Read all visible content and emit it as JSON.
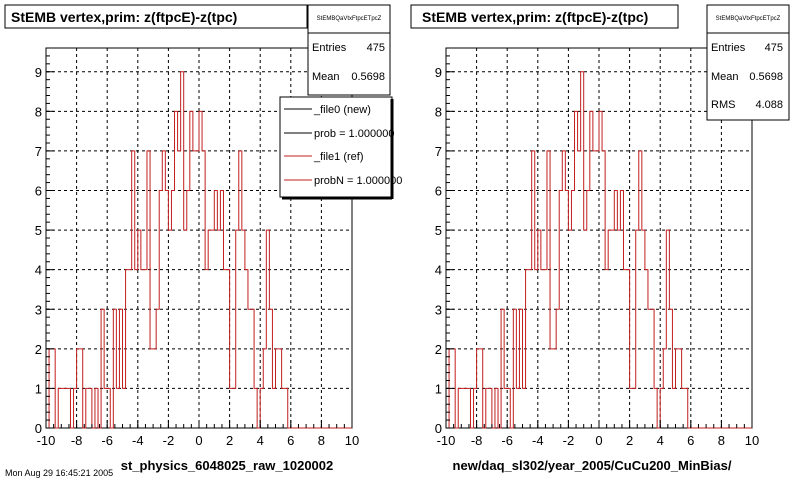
{
  "colors": {
    "hist": "#c21f1f",
    "legend_new": "#000000",
    "legend_ref": "#c21f1f",
    "grid": "#000000",
    "background": "#ffffff"
  },
  "footer_text": "Mon Aug 29 16:45:21 2005",
  "chart_data": [
    {
      "type": "bar",
      "title": "StEMB  vertex,prim: z(ftpcE)-z(tpc)",
      "xlabel": "st_physics_6048025_raw_1020002",
      "ylabel": "",
      "xlim": [
        -10,
        10
      ],
      "ylim": [
        0,
        9.6
      ],
      "grid": true,
      "x_ticks": [
        -10,
        -8,
        -6,
        -4,
        -2,
        0,
        2,
        4,
        6,
        8,
        10
      ],
      "y_ticks": [
        0,
        1,
        2,
        3,
        4,
        5,
        6,
        7,
        8,
        9
      ],
      "bin_width": 0.2,
      "series": [
        {
          "values": [
            0,
            2,
            2,
            0,
            1,
            1,
            1,
            1,
            0,
            1,
            2,
            2,
            0,
            1,
            1,
            0,
            1,
            0,
            3,
            1,
            1,
            0,
            3,
            1,
            3,
            1,
            4,
            4,
            7,
            4,
            5,
            4,
            4,
            7,
            2,
            2,
            3,
            6,
            7,
            6,
            5,
            6,
            8,
            7,
            9,
            5,
            6,
            8,
            7,
            7,
            8,
            7,
            4,
            5,
            5,
            6,
            5,
            6,
            4,
            4,
            1,
            1,
            5,
            7,
            5,
            4,
            3,
            3,
            1,
            0,
            1,
            2,
            5,
            3,
            1,
            2,
            2,
            1,
            1,
            0,
            0,
            0,
            0,
            0,
            0,
            0,
            0,
            0,
            0,
            0,
            0,
            0,
            0,
            0,
            0,
            0,
            0,
            0,
            0,
            0
          ]
        }
      ],
      "stats": {
        "name": "StEMBQaVtxFtpcETpcZ",
        "Entries": "475",
        "Mean": "0.5698"
      },
      "legend": {
        "placement": "top-right",
        "entries": [
          "_file0 (new)",
          "prob = 1.000000",
          "_file1 (ref)",
          "probN = 1.000000"
        ]
      }
    },
    {
      "type": "bar",
      "title": "StEMB  vertex,prim: z(ftpcE)-z(tpc)",
      "xlabel": "new/daq_sl302/year_2005/CuCu200_MinBias/",
      "ylabel": "",
      "xlim": [
        -10,
        10
      ],
      "ylim": [
        0,
        9.6
      ],
      "grid": true,
      "x_ticks": [
        -10,
        -8,
        -6,
        -4,
        -2,
        0,
        2,
        4,
        6,
        8,
        10
      ],
      "y_ticks": [
        0,
        1,
        2,
        3,
        4,
        5,
        6,
        7,
        8,
        9
      ],
      "bin_width": 0.2,
      "series": [
        {
          "values": [
            0,
            2,
            2,
            0,
            1,
            1,
            1,
            1,
            0,
            1,
            2,
            2,
            0,
            1,
            1,
            0,
            1,
            0,
            3,
            1,
            1,
            0,
            3,
            1,
            3,
            1,
            4,
            4,
            7,
            4,
            5,
            4,
            4,
            7,
            2,
            2,
            3,
            6,
            7,
            6,
            5,
            6,
            8,
            7,
            9,
            5,
            6,
            8,
            7,
            7,
            8,
            7,
            4,
            5,
            5,
            6,
            5,
            6,
            4,
            4,
            1,
            1,
            5,
            7,
            5,
            4,
            3,
            3,
            1,
            0,
            1,
            2,
            5,
            3,
            1,
            2,
            2,
            1,
            1,
            0,
            0,
            0,
            0,
            0,
            0,
            0,
            0,
            0,
            0,
            0,
            0,
            0,
            0,
            0,
            0,
            0,
            0,
            0,
            0,
            0
          ]
        }
      ],
      "stats": {
        "name": "StEMBQaVtxFtpcETpcZ",
        "Entries": "475",
        "Mean": "0.5698",
        "RMS": "4.088"
      },
      "legend": null
    }
  ]
}
